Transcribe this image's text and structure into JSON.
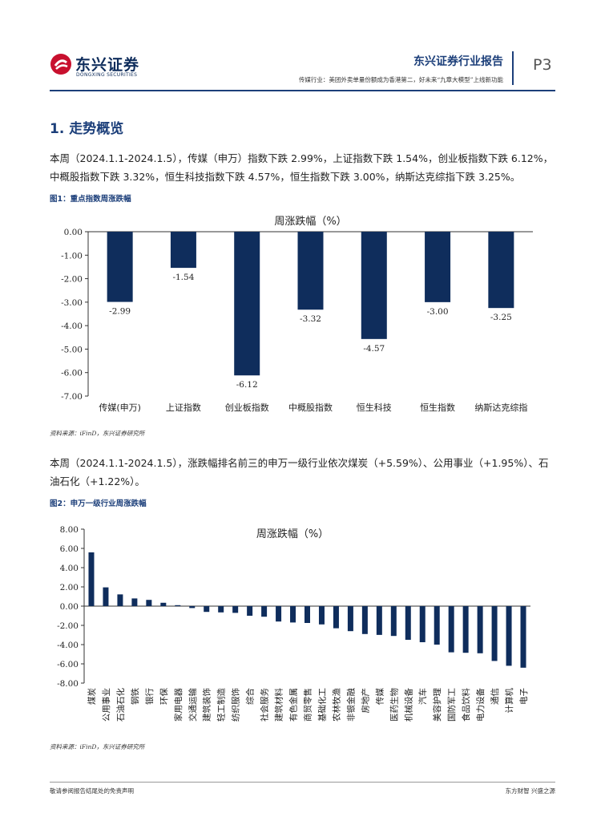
{
  "header": {
    "logo_cn": "东兴证券",
    "logo_en": "DONGXING SECURITIES",
    "report_type": "东兴证券行业报告",
    "subtitle": "传媒行业：美团外卖单量份额成为香港第二，好未来“九章大模型”上线新功能",
    "page": "P3"
  },
  "section": {
    "title": "1. 走势概览"
  },
  "para1": "本周（2024.1.1-2024.1.5），传媒（申万）指数下跌 2.99%，上证指数下跌 1.54%，创业板指数下跌 6.12%，中概股指数下跌 3.32%，恒生科技指数下跌 4.57%，恒生指数下跌 3.00%，纳斯达克综指下跌 3.25%。",
  "fig1": {
    "label": "图1：重点指数周涨跌幅",
    "source": "资料来源：iFinD，东兴证券研究所"
  },
  "para2": "本周（2024.1.1-2024.1.5），涨跌幅排名前三的申万一级行业依次煤炭（+5.59%）、公用事业（+1.95%）、石油石化（+1.22%）。",
  "fig2": {
    "label": "图2：申万一级行业周涨跌幅",
    "source": "资料来源：iFinD，东兴证券研究所"
  },
  "footer": {
    "left": "敬请参阅报告结尾处的免责声明",
    "right": "东方财智  兴盛之源"
  },
  "colors": {
    "bar": "#0f2d5c",
    "accent": "#1c3f7a"
  },
  "chart_data": [
    {
      "type": "bar",
      "title": "周涨跌幅（%）",
      "categories": [
        "传媒(申万)",
        "上证指数",
        "创业板指数",
        "中概股指数",
        "恒生科技",
        "恒生指数",
        "纳斯达克综指"
      ],
      "values": [
        -2.99,
        -1.54,
        -6.12,
        -3.32,
        -4.57,
        -3.0,
        -3.25
      ],
      "value_labels": [
        "-2.99",
        "-1.54",
        "-6.12",
        "-3.32",
        "-4.57",
        "-3.00",
        "-3.25"
      ],
      "yticks": [
        "0.00",
        "-1.00",
        "-2.00",
        "-3.00",
        "-4.00",
        "-5.00",
        "-6.00",
        "-7.00"
      ],
      "ylim": [
        -7,
        0
      ],
      "xlabel": "",
      "ylabel": ""
    },
    {
      "type": "bar",
      "title": "周涨跌幅（%）",
      "categories": [
        "煤炭",
        "公用事业",
        "石油石化",
        "钢铁",
        "银行",
        "环保",
        "家用电器",
        "交通运输",
        "建筑装饰",
        "轻工制造",
        "纺织服饰",
        "综合",
        "社会服务",
        "建筑材料",
        "有色金属",
        "商贸零售",
        "基础化工",
        "农林牧渔",
        "非银金融",
        "房地产",
        "传媒",
        "医药生物",
        "机械设备",
        "汽车",
        "美容护理",
        "国防军工",
        "食品饮料",
        "电力设备",
        "通信",
        "计算机",
        "电子"
      ],
      "values": [
        5.59,
        1.95,
        1.22,
        0.8,
        0.65,
        0.35,
        0.1,
        -0.2,
        -0.6,
        -0.65,
        -0.7,
        -1.0,
        -1.1,
        -1.6,
        -1.7,
        -1.75,
        -1.9,
        -2.3,
        -2.6,
        -2.9,
        -2.99,
        -3.1,
        -3.5,
        -3.75,
        -4.0,
        -4.8,
        -4.85,
        -4.9,
        -5.7,
        -6.2,
        -6.4
      ],
      "yticks": [
        "8.00",
        "6.00",
        "4.00",
        "2.00",
        "0.00",
        "-2.00",
        "-4.00",
        "-6.00",
        "-8.00"
      ],
      "ylim": [
        -8,
        8
      ],
      "xlabel": "",
      "ylabel": ""
    }
  ]
}
